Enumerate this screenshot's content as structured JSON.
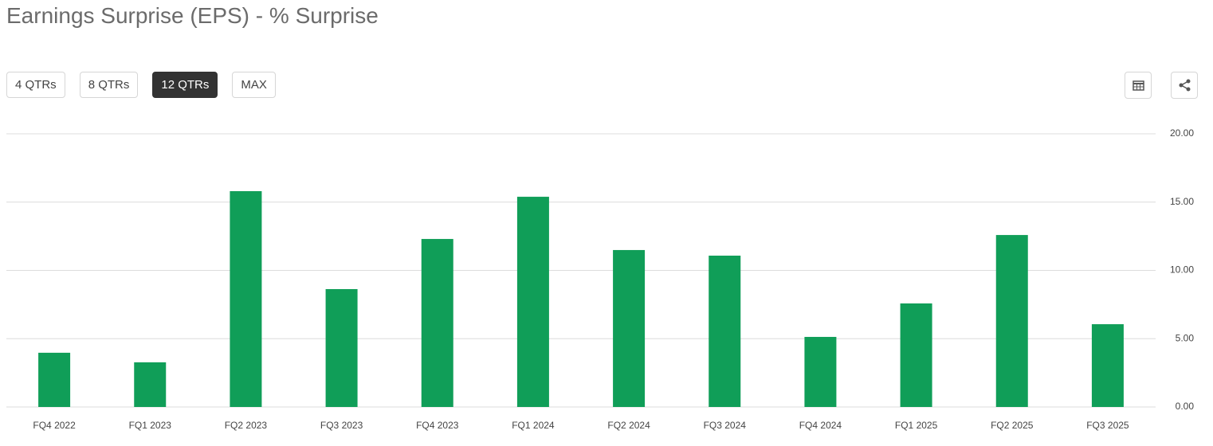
{
  "chart_data": {
    "type": "bar",
    "title": "Earnings Surprise (EPS) - % Surprise",
    "range_buttons": [
      "4 QTRs",
      "8 QTRs",
      "12 QTRs",
      "MAX"
    ],
    "selected_range": 2,
    "categories": [
      "FQ4 2022",
      "FQ1 2023",
      "FQ2 2023",
      "FQ3 2023",
      "FQ4 2023",
      "FQ1 2024",
      "FQ2 2024",
      "FQ3 2024",
      "FQ4 2024",
      "FQ1 2025",
      "FQ2 2025",
      "FQ3 2025"
    ],
    "values": [
      3.97,
      3.27,
      15.8,
      8.63,
      12.3,
      15.39,
      11.49,
      11.08,
      5.13,
      7.58,
      12.59,
      6.06
    ],
    "color": "#109e58",
    "ylim": [
      0,
      20
    ],
    "yticks": [
      {
        "value": 0,
        "label": "0.00"
      },
      {
        "value": 5,
        "label": "5.00"
      },
      {
        "value": 10,
        "label": "10.00"
      },
      {
        "value": 15,
        "label": "15.00"
      },
      {
        "value": 20,
        "label": "20.00"
      }
    ],
    "grid": true
  }
}
